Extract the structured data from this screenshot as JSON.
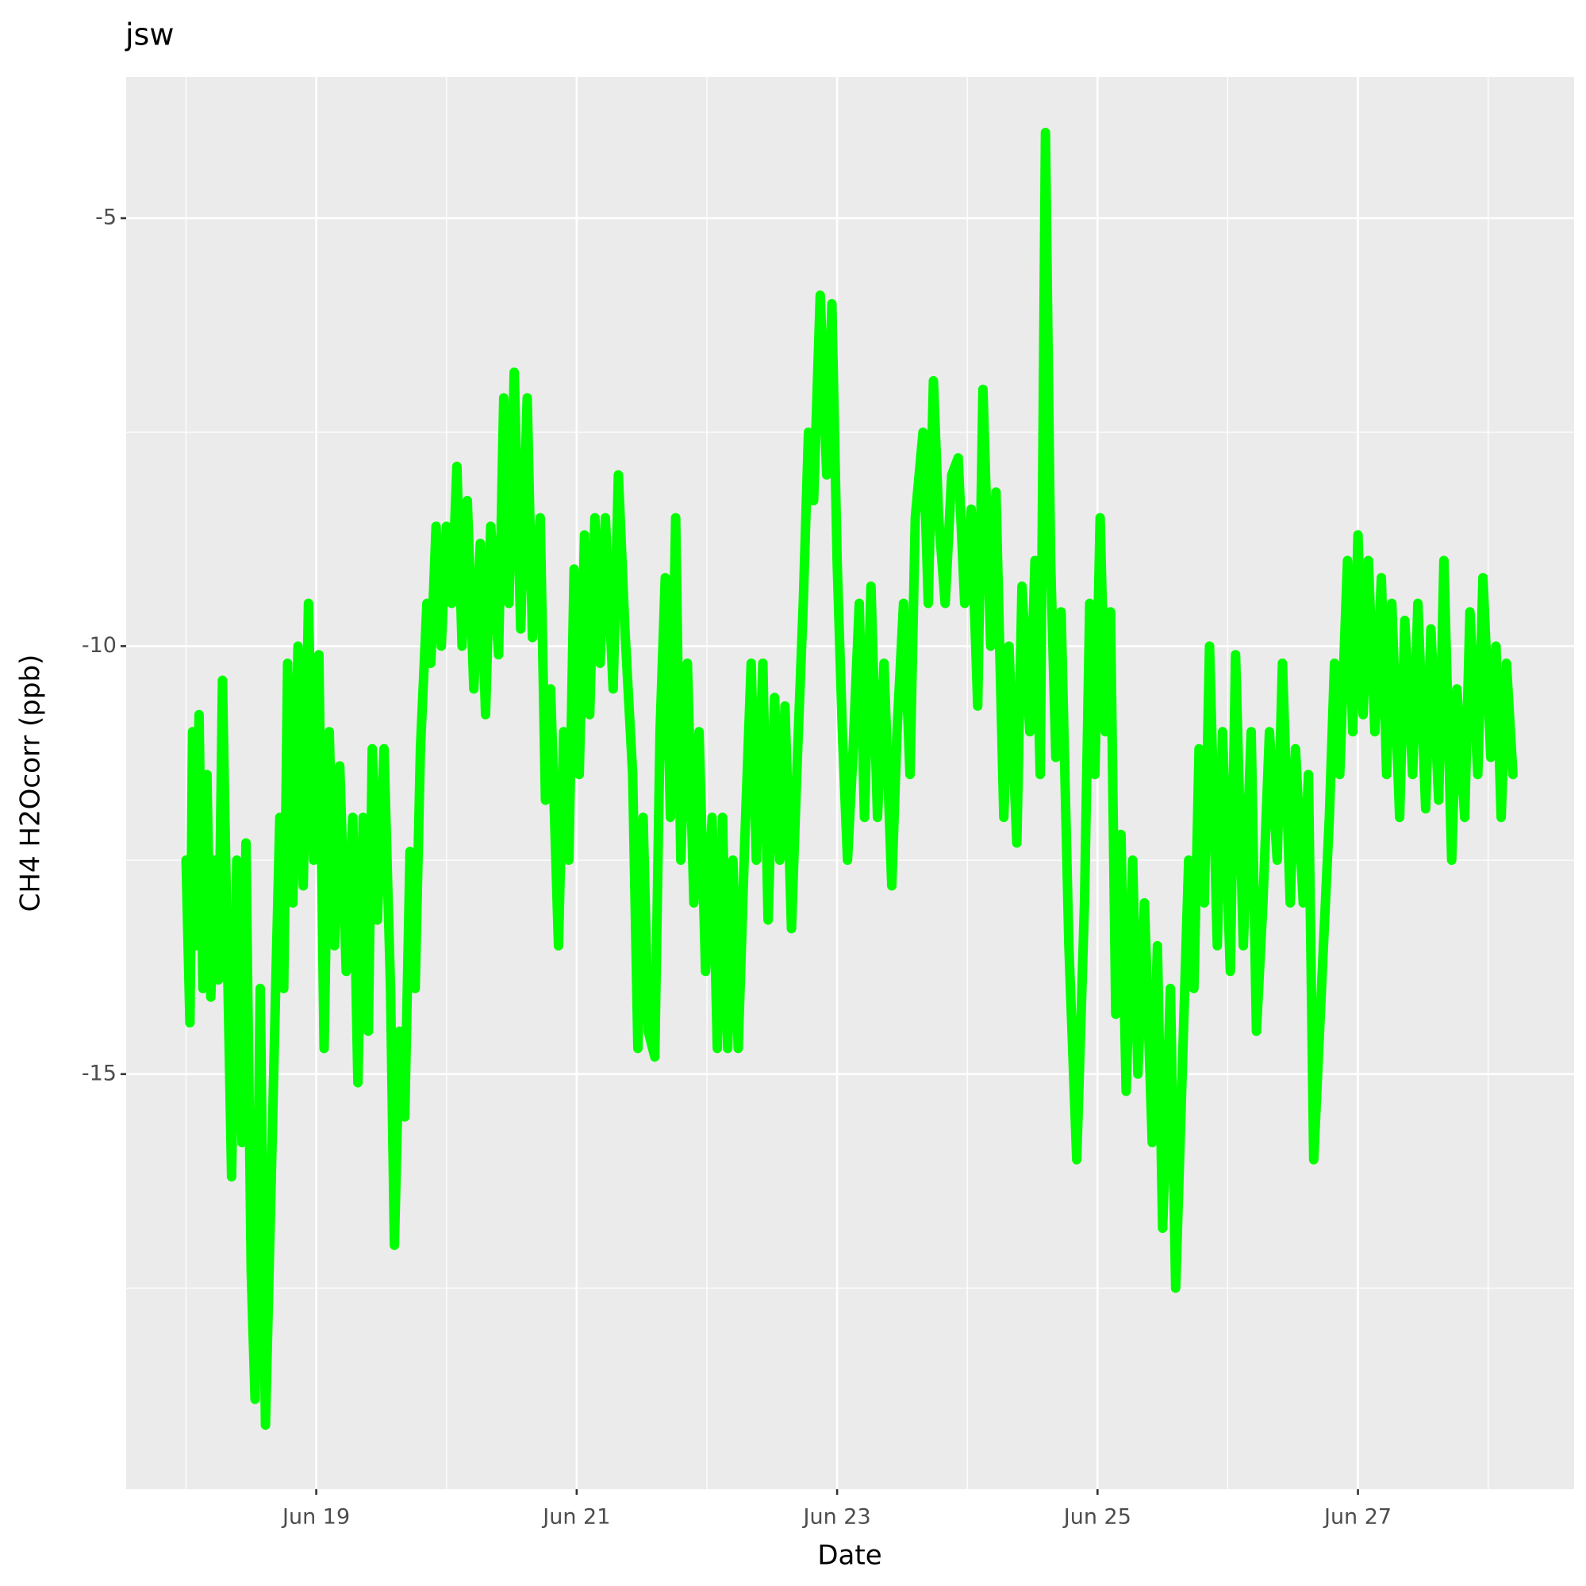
{
  "chart_data": {
    "type": "line",
    "title": "jsw",
    "x_label": "Date",
    "y_label": "CH4 H2Ocorr (ppb)",
    "xlim": [
      17.54,
      28.66
    ],
    "ylim": [
      -19.85,
      -3.35
    ],
    "xticks": [
      {
        "value": 19,
        "label": "Jun 19"
      },
      {
        "value": 21,
        "label": "Jun 21"
      },
      {
        "value": 23,
        "label": "Jun 23"
      },
      {
        "value": 25,
        "label": "Jun 25"
      },
      {
        "value": 27,
        "label": "Jun 27"
      }
    ],
    "yticks": [
      -15,
      -10,
      -5
    ],
    "grid": true,
    "series": [
      {
        "color": "#00ff00",
        "x": [
          18.0,
          18.03,
          18.05,
          18.08,
          18.1,
          18.13,
          18.16,
          18.19,
          18.22,
          18.25,
          18.28,
          18.31,
          18.35,
          18.39,
          18.43,
          18.46,
          18.5,
          18.53,
          18.57,
          18.61,
          18.65,
          18.69,
          18.72,
          18.75,
          18.78,
          18.82,
          18.86,
          18.9,
          18.94,
          18.98,
          19.02,
          19.06,
          19.1,
          19.14,
          19.18,
          19.23,
          19.28,
          19.32,
          19.36,
          19.4,
          19.43,
          19.47,
          19.52,
          19.57,
          19.6,
          19.64,
          19.68,
          19.72,
          19.76,
          19.8,
          19.85,
          19.88,
          19.92,
          19.96,
          20.0,
          20.04,
          20.08,
          20.12,
          20.16,
          20.21,
          20.26,
          20.3,
          20.34,
          20.4,
          20.44,
          20.48,
          20.52,
          20.57,
          20.62,
          20.66,
          20.72,
          20.76,
          20.8,
          20.86,
          20.9,
          20.94,
          20.98,
          21.02,
          21.06,
          21.1,
          21.14,
          21.18,
          21.22,
          21.28,
          21.32,
          21.37,
          21.43,
          21.47,
          21.51,
          21.55,
          21.6,
          21.64,
          21.68,
          21.72,
          21.76,
          21.8,
          21.85,
          21.9,
          21.94,
          21.99,
          22.04,
          22.08,
          22.12,
          22.16,
          22.2,
          22.24,
          22.29,
          22.34,
          22.38,
          22.43,
          22.47,
          22.52,
          22.56,
          22.6,
          22.65,
          22.69,
          22.74,
          22.78,
          22.82,
          22.87,
          22.92,
          22.96,
          23.0,
          23.04,
          23.08,
          23.12,
          23.17,
          23.21,
          23.26,
          23.31,
          23.36,
          23.42,
          23.46,
          23.51,
          23.56,
          23.6,
          23.66,
          23.7,
          23.74,
          23.78,
          23.83,
          23.88,
          23.93,
          23.98,
          24.03,
          24.08,
          24.12,
          24.18,
          24.22,
          24.28,
          24.32,
          24.38,
          24.42,
          24.48,
          24.52,
          24.56,
          24.6,
          24.64,
          24.68,
          24.72,
          24.78,
          24.84,
          24.9,
          24.94,
          24.98,
          25.02,
          25.06,
          25.1,
          25.14,
          25.18,
          25.22,
          25.27,
          25.31,
          25.36,
          25.42,
          25.46,
          25.5,
          25.56,
          25.6,
          25.65,
          25.7,
          25.74,
          25.78,
          25.82,
          25.86,
          25.92,
          25.96,
          26.02,
          26.06,
          26.12,
          26.18,
          26.22,
          26.27,
          26.32,
          26.38,
          26.42,
          26.48,
          26.52,
          26.58,
          26.62,
          26.66,
          26.72,
          26.78,
          26.82,
          26.86,
          26.92,
          26.96,
          27.0,
          27.04,
          27.08,
          27.13,
          27.18,
          27.22,
          27.26,
          27.32,
          27.36,
          27.42,
          27.46,
          27.52,
          27.56,
          27.62,
          27.66,
          27.72,
          27.76,
          27.82,
          27.86,
          27.92,
          27.96,
          28.02,
          28.06,
          28.1,
          28.14,
          28.19
        ],
        "values": [
          -12.5,
          -14.4,
          -11.0,
          -13.5,
          -10.8,
          -14.0,
          -11.5,
          -14.1,
          -12.5,
          -13.9,
          -10.4,
          -13.0,
          -16.2,
          -12.5,
          -15.8,
          -12.3,
          -17.3,
          -18.8,
          -14.0,
          -19.1,
          -16.5,
          -13.9,
          -12.0,
          -14.0,
          -10.2,
          -13.0,
          -10.0,
          -12.8,
          -9.5,
          -12.5,
          -10.1,
          -14.7,
          -11.0,
          -13.5,
          -11.4,
          -13.8,
          -12.0,
          -15.1,
          -12.0,
          -14.5,
          -11.2,
          -13.2,
          -11.2,
          -14.0,
          -17.0,
          -14.5,
          -15.5,
          -12.4,
          -14.0,
          -11.2,
          -9.5,
          -10.2,
          -8.6,
          -10.0,
          -8.6,
          -9.5,
          -7.9,
          -10.0,
          -8.3,
          -10.5,
          -8.8,
          -10.8,
          -8.6,
          -10.1,
          -7.1,
          -9.5,
          -6.8,
          -9.8,
          -7.1,
          -9.9,
          -8.5,
          -11.8,
          -10.5,
          -13.5,
          -11.0,
          -12.5,
          -9.1,
          -11.5,
          -8.7,
          -10.8,
          -8.5,
          -10.2,
          -8.5,
          -10.5,
          -8.0,
          -9.8,
          -11.5,
          -14.7,
          -12.0,
          -14.5,
          -14.8,
          -11.0,
          -9.2,
          -12.0,
          -8.5,
          -12.5,
          -10.2,
          -13.0,
          -11.0,
          -13.8,
          -12.0,
          -14.7,
          -12.0,
          -14.7,
          -12.5,
          -14.7,
          -12.3,
          -10.2,
          -12.5,
          -10.2,
          -13.2,
          -10.6,
          -12.5,
          -10.7,
          -13.3,
          -11.5,
          -9.5,
          -7.5,
          -8.3,
          -5.9,
          -8.0,
          -6.0,
          -9.0,
          -11.0,
          -12.5,
          -11.3,
          -9.5,
          -12.0,
          -9.3,
          -12.0,
          -10.2,
          -12.8,
          -11.0,
          -9.5,
          -11.5,
          -8.5,
          -7.5,
          -9.5,
          -6.9,
          -8.5,
          -9.5,
          -8.0,
          -7.8,
          -9.5,
          -8.4,
          -10.7,
          -7.0,
          -10.0,
          -8.2,
          -12.0,
          -10.0,
          -12.3,
          -9.3,
          -11.0,
          -9.0,
          -11.5,
          -4.0,
          -9.0,
          -11.3,
          -9.6,
          -13.5,
          -16.0,
          -13.0,
          -9.5,
          -11.5,
          -8.5,
          -11.0,
          -9.6,
          -14.3,
          -12.2,
          -15.2,
          -12.5,
          -15.0,
          -13.0,
          -15.8,
          -13.5,
          -16.8,
          -14.0,
          -17.5,
          -15.0,
          -12.5,
          -14.0,
          -11.2,
          -13.0,
          -10.0,
          -13.5,
          -11.0,
          -13.8,
          -10.1,
          -13.5,
          -11.0,
          -14.5,
          -13.0,
          -11.0,
          -12.5,
          -10.2,
          -13.0,
          -11.2,
          -13.0,
          -11.5,
          -16.0,
          -14.0,
          -12.0,
          -10.2,
          -11.5,
          -9.0,
          -11.0,
          -8.7,
          -10.8,
          -9.0,
          -11.0,
          -9.2,
          -11.5,
          -9.5,
          -12.0,
          -9.7,
          -11.5,
          -9.5,
          -11.9,
          -9.8,
          -11.8,
          -9.0,
          -12.5,
          -10.5,
          -12.0,
          -9.6,
          -11.5,
          -9.2,
          -11.3,
          -10.0,
          -12.0,
          -10.2,
          -11.5
        ]
      }
    ]
  }
}
